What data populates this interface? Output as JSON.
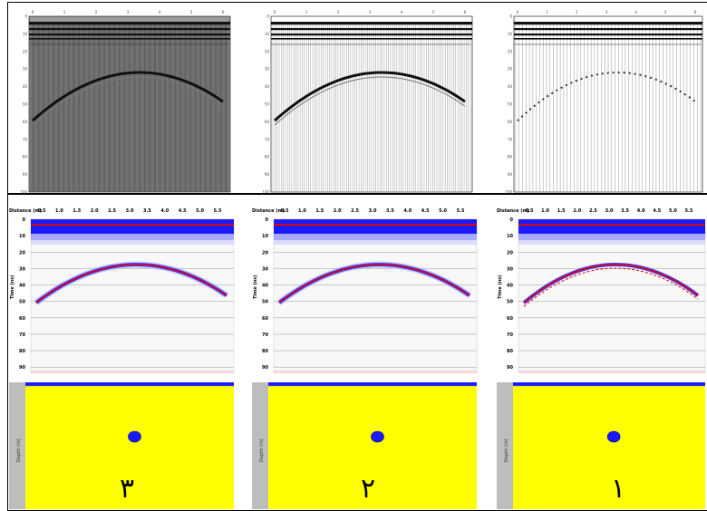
{
  "top_panels": [
    {
      "style": "dense",
      "fill": "#9a9a9a",
      "curve_color": "#111111"
    },
    {
      "style": "medium",
      "fill": "#ffffff",
      "curve_color": "#111111"
    },
    {
      "style": "sparse",
      "fill": "#ffffff",
      "curve_color": "#333333"
    }
  ],
  "top_axis": {
    "x_ticks": [
      "0",
      "1",
      "2",
      "3",
      "4",
      "5",
      "6"
    ],
    "y_ticks": [
      "0",
      "10",
      "20",
      "30",
      "40",
      "50",
      "60",
      "70",
      "80",
      "90",
      "100"
    ]
  },
  "bottom_panels": [
    {
      "numeral": "٣",
      "wide_band": true
    },
    {
      "numeral": "٢",
      "wide_band": true
    },
    {
      "numeral": "١",
      "wide_band": false
    }
  ],
  "bottom_axis": {
    "distance_label": "Distance (m)",
    "time_label": "Time (ns)",
    "depth_label": "Depth (m)",
    "x_ticks": [
      "0.5",
      "1.0",
      "1.5",
      "2.0",
      "2.5",
      "3.0",
      "3.5",
      "4.0",
      "4.5",
      "5.0",
      "5.5"
    ],
    "y_ticks": [
      "0",
      "10",
      "20",
      "30",
      "40",
      "50",
      "60",
      "70",
      "80",
      "90"
    ]
  },
  "colors": {
    "soil": "#ffff00",
    "air_band": "#1a1aff",
    "reflection_red": "#e00000",
    "object": "#1a1aff"
  }
}
